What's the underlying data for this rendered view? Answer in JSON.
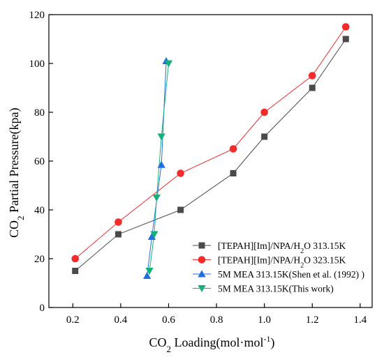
{
  "chart_data": {
    "type": "scatter",
    "xlabel": {
      "main": "CO",
      "sub": "2",
      "rest": " Loading(mol·mol",
      "sup": "-1",
      "end": ")"
    },
    "ylabel": {
      "main": "CO",
      "sub": "2",
      "rest": " Partial Pressure(kpa)"
    },
    "xlim": [
      0.1,
      1.45
    ],
    "ylim": [
      0,
      120
    ],
    "xticks": [
      0.2,
      0.4,
      0.6,
      0.8,
      1.0,
      1.2,
      1.4
    ],
    "xtick_labels": [
      "0.2",
      "0.4",
      "0.6",
      "0.8",
      "1.0",
      "1.2",
      "1.4"
    ],
    "yticks": [
      0,
      20,
      40,
      60,
      80,
      100,
      120
    ],
    "ytick_labels": [
      "0",
      "20",
      "40",
      "60",
      "80",
      "100",
      "120"
    ],
    "legend_position": "bottom-right",
    "series": [
      {
        "name_parts": {
          "pre": "[TEPAH][Im]/NPA/H",
          "sub": "2",
          "post": "O 313.15K"
        },
        "marker": "square",
        "color": "#4a4a4a",
        "x": [
          0.21,
          0.39,
          0.65,
          0.87,
          1.0,
          1.2,
          1.34
        ],
        "y": [
          15,
          30,
          40,
          55,
          70,
          90,
          110
        ]
      },
      {
        "name_parts": {
          "pre": "[TEPAH][Im]/NPA/H",
          "sub": "2",
          "post": "O 323.15K"
        },
        "marker": "circle",
        "color": "#f22b2b",
        "x": [
          0.21,
          0.39,
          0.65,
          0.87,
          1.0,
          1.2,
          1.34
        ],
        "y": [
          20,
          35,
          55,
          65,
          80,
          95,
          115
        ]
      },
      {
        "name_parts": {
          "pre": "5M MEA 313.15K(Shen et al. (1992) )",
          "sub": "",
          "post": ""
        },
        "marker": "triangle-up",
        "color": "#1f6fe0",
        "x": [
          0.51,
          0.53,
          0.57,
          0.59
        ],
        "y": [
          13,
          29,
          58.5,
          101
        ]
      },
      {
        "name_parts": {
          "pre": "5M MEA 313.15K(This work)",
          "sub": "",
          "post": ""
        },
        "marker": "triangle-down",
        "color": "#13b27a",
        "x": [
          0.52,
          0.54,
          0.55,
          0.57,
          0.6
        ],
        "y": [
          15,
          30,
          45,
          70,
          100
        ]
      }
    ]
  }
}
